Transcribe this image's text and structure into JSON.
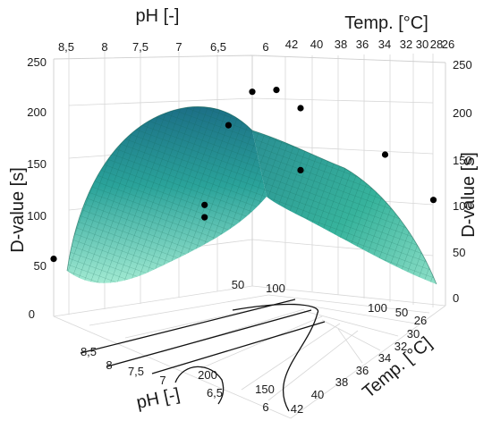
{
  "chart_data": {
    "type": "surface3d",
    "title": "",
    "axes": {
      "ph": {
        "label": "pH [-]",
        "ticks": [
          "8,5",
          "8",
          "7,5",
          "7",
          "6,5",
          "6"
        ],
        "range": [
          6,
          8.5
        ]
      },
      "temp": {
        "label": "Temp. [°C]",
        "ticks": [
          "42",
          "40",
          "38",
          "36",
          "34",
          "32",
          "30",
          "28",
          "26"
        ],
        "bottom_ticks": [
          "26",
          "30",
          "32",
          "34",
          "36",
          "38",
          "40",
          "42"
        ],
        "range": [
          26,
          42
        ]
      },
      "dvalue": {
        "label": "D-value [s]",
        "ticks": [
          "0",
          "50",
          "100",
          "150",
          "200",
          "250"
        ],
        "range": [
          0,
          250
        ]
      }
    },
    "surface": {
      "model": "quadratic response surface",
      "peak_d_value": 205,
      "peak_ph": 7.2,
      "peak_temp": 42,
      "colors": {
        "high": "#1c6f86",
        "mid": "#2aa39a",
        "low": "#a2ead2",
        "mesh": "#0d5e4c"
      }
    },
    "observations": [
      {
        "ph": 8.5,
        "temp": 42,
        "d_value": 56
      },
      {
        "ph": 6.6,
        "temp": 42,
        "d_value": 86
      },
      {
        "ph": 6.6,
        "temp": 42,
        "d_value": 74
      },
      {
        "ph": 6.3,
        "temp": 42,
        "d_value": 160
      },
      {
        "ph": 6.0,
        "temp": 42,
        "d_value": 189
      },
      {
        "ph": 6.0,
        "temp": 40,
        "d_value": 192
      },
      {
        "ph": 6.0,
        "temp": 38,
        "d_value": 175
      },
      {
        "ph": 6.0,
        "temp": 38,
        "d_value": 113
      },
      {
        "ph": 6.0,
        "temp": 31,
        "d_value": 130
      },
      {
        "ph": 6.0,
        "temp": 27,
        "d_value": 82
      }
    ],
    "contours": {
      "levels": [
        "50",
        "100",
        "150",
        "200"
      ],
      "grid_values": [
        "50",
        "100"
      ]
    }
  }
}
